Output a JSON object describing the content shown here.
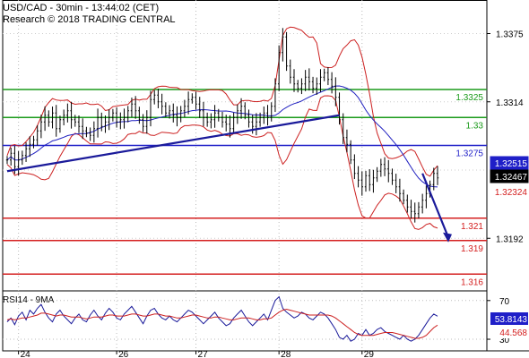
{
  "header": {
    "line1": "USD/CAD - 30min - 13:44:02 (CET)",
    "line2": "Research © 2018 TRADING CENTRAL"
  },
  "chart_data": [
    {
      "type": "candlestick",
      "symbol": "USD/CAD",
      "timeframe": "30min",
      "x_tick_labels": [
        "24",
        "26",
        "27",
        "28",
        "29"
      ],
      "y_tick_labels": [
        "1.3375",
        "1.3314",
        "1.3192"
      ],
      "ylim": [
        1.3145,
        1.3405
      ],
      "levels": [
        {
          "label": "1.3325",
          "value": 1.3325,
          "color": "#1a9a1a"
        },
        {
          "label": "1.33",
          "value": 1.33,
          "color": "#1a9a1a"
        },
        {
          "label": "1.3275",
          "value": 1.3275,
          "color": "#1f1fc8"
        },
        {
          "label": "1.321",
          "value": 1.321,
          "color": "#d42020"
        },
        {
          "label": "1.319",
          "value": 1.319,
          "color": "#d42020"
        },
        {
          "label": "1.316",
          "value": 1.316,
          "color": "#d42020"
        }
      ],
      "price_tags": [
        {
          "label": "1.32515",
          "value": 1.32515,
          "bg": "#1f1fc8",
          "fg": "#ffffff"
        },
        {
          "label": "1.32467",
          "value": 1.32467,
          "bg": "#000000",
          "fg": "#ffffff"
        },
        {
          "label": "1.32324",
          "value": 1.32324,
          "bg": "#ffffff",
          "fg": "#d42020"
        }
      ],
      "price_path": [
        1.3262,
        1.3268,
        1.3256,
        1.3262,
        1.3266,
        1.3272,
        1.3276,
        1.328,
        1.3288,
        1.3296,
        1.3302,
        1.3296,
        1.3304,
        1.329,
        1.3298,
        1.3302,
        1.3306,
        1.3298,
        1.3296,
        1.3292,
        1.3288,
        1.3286,
        1.3284,
        1.329,
        1.33,
        1.3292,
        1.3296,
        1.33,
        1.3304,
        1.3296,
        1.3298,
        1.33,
        1.3306,
        1.3312,
        1.3306,
        1.3298,
        1.3292,
        1.33,
        1.3316,
        1.332,
        1.3314,
        1.331,
        1.3304,
        1.3306,
        1.3302,
        1.33,
        1.3306,
        1.331,
        1.3316,
        1.3318,
        1.3312,
        1.3306,
        1.33,
        1.3296,
        1.3298,
        1.3304,
        1.33,
        1.3296,
        1.3294,
        1.329,
        1.33,
        1.3306,
        1.331,
        1.3302,
        1.3296,
        1.3292,
        1.3296,
        1.33,
        1.3304,
        1.33,
        1.331,
        1.333,
        1.3358,
        1.3372,
        1.3346,
        1.3336,
        1.333,
        1.3326,
        1.333,
        1.3336,
        1.3332,
        1.3326,
        1.333,
        1.3336,
        1.334,
        1.3334,
        1.3328,
        1.3318,
        1.3298,
        1.3282,
        1.3276,
        1.3262,
        1.325,
        1.3244,
        1.3238,
        1.3248,
        1.324,
        1.3246,
        1.3252,
        1.3258,
        1.3254,
        1.325,
        1.3244,
        1.3238,
        1.3232,
        1.3226,
        1.322,
        1.3216,
        1.3214,
        1.322,
        1.3226,
        1.3232,
        1.324,
        1.325,
        1.3246
      ],
      "trendline": {
        "from": [
          0,
          1.3252
        ],
        "to": [
          88,
          1.3302
        ]
      },
      "projection": {
        "from": [
          110,
          1.325
        ],
        "to": [
          117,
          1.319
        ]
      }
    },
    {
      "type": "line",
      "title": "RSI14 - 9MA",
      "y_tick_labels": [
        "70",
        "30"
      ],
      "ylim": [
        18,
        80
      ],
      "tags": [
        {
          "label": "53.8143",
          "value": 53.8143,
          "bg": "#1f1fc8",
          "fg": "#ffffff"
        },
        {
          "label": "44.568",
          "value": 44.568,
          "bg": "#ffffff",
          "fg": "#d42020"
        }
      ],
      "series": [
        {
          "values": [
            48,
            52,
            45,
            54,
            58,
            50,
            60,
            56,
            62,
            66,
            58,
            52,
            48,
            56,
            60,
            54,
            50,
            46,
            52,
            56,
            50,
            48,
            55,
            60,
            54,
            50,
            57,
            62,
            58,
            52,
            50,
            56,
            60,
            64,
            58,
            52,
            46,
            54,
            60,
            62,
            56,
            52,
            50,
            54,
            50,
            48,
            52,
            56,
            60,
            58,
            54,
            50,
            46,
            50,
            54,
            58,
            52,
            48,
            44,
            46,
            52,
            56,
            60,
            54,
            48,
            44,
            48,
            52,
            56,
            50,
            60,
            70,
            74,
            62,
            58,
            55,
            52,
            54,
            58,
            56,
            52,
            50,
            54,
            58,
            56,
            52,
            46,
            40,
            32,
            30,
            34,
            28,
            30,
            36,
            34,
            40,
            34,
            36,
            40,
            42,
            38,
            36,
            34,
            32,
            30,
            34,
            30,
            28,
            30,
            34,
            40,
            46,
            52,
            56,
            53.8
          ]
        },
        {
          "values": [
            50,
            51,
            50,
            51,
            52,
            52,
            53,
            54,
            55,
            57,
            57,
            56,
            55,
            54,
            55,
            55,
            54,
            53,
            53,
            53,
            52,
            51,
            52,
            53,
            53,
            53,
            54,
            55,
            55,
            54,
            54,
            54,
            55,
            56,
            56,
            55,
            54,
            54,
            55,
            56,
            56,
            55,
            54,
            54,
            53,
            52,
            52,
            53,
            54,
            55,
            55,
            54,
            53,
            52,
            52,
            53,
            53,
            52,
            51,
            50,
            50,
            51,
            52,
            52,
            52,
            51,
            50,
            50,
            51,
            51,
            52,
            55,
            58,
            60,
            61,
            60,
            59,
            58,
            57,
            56,
            55,
            55,
            55,
            55,
            55,
            55,
            54,
            52,
            49,
            46,
            43,
            40,
            37,
            35,
            34,
            34,
            34,
            34,
            35,
            36,
            37,
            37,
            37,
            36,
            35,
            34,
            33,
            32,
            31,
            31,
            32,
            34,
            38,
            42,
            44.568
          ]
        }
      ]
    }
  ]
}
